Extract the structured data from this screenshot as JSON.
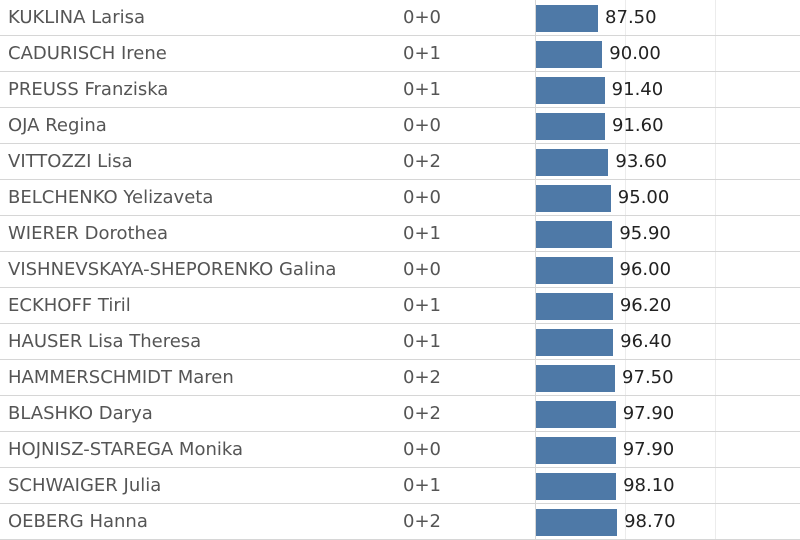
{
  "chart_data": {
    "type": "bar",
    "orientation": "horizontal",
    "columns": [
      "",
      "",
      ""
    ],
    "categories": [
      "KUKLINA Larisa",
      "CADURISCH Irene",
      "PREUSS Franziska",
      "OJA Regina",
      "VITTOZZI Lisa",
      "BELCHENKO Yelizaveta",
      "WIERER Dorothea",
      "VISHNEVSKAYA-SHEPORENKO Galina",
      "ECKHOFF Tiril",
      "HAUSER Lisa Theresa",
      "HAMMERSCHMIDT Maren",
      "BLASHKO Darya",
      "HOJNISZ-STAREGA Monika",
      "SCHWAIGER Julia",
      "OEBERG Hanna"
    ],
    "penalties": [
      "0+0",
      "0+1",
      "0+1",
      "0+0",
      "0+2",
      "0+0",
      "0+1",
      "0+0",
      "0+1",
      "0+1",
      "0+2",
      "0+2",
      "0+0",
      "0+1",
      "0+2"
    ],
    "values": [
      87.5,
      90.0,
      91.4,
      91.6,
      93.6,
      95.0,
      95.9,
      96.0,
      96.2,
      96.4,
      97.5,
      97.9,
      97.9,
      98.1,
      98.7
    ],
    "value_labels": [
      "87.50",
      "90.00",
      "91.40",
      "91.60",
      "93.60",
      "95.00",
      "95.90",
      "96.00",
      "96.20",
      "96.40",
      "97.50",
      "97.90",
      "97.90",
      "98.10",
      "98.70"
    ],
    "xlim": [
      0,
      100
    ],
    "bar_color": "#4e79a7",
    "grid": true
  }
}
